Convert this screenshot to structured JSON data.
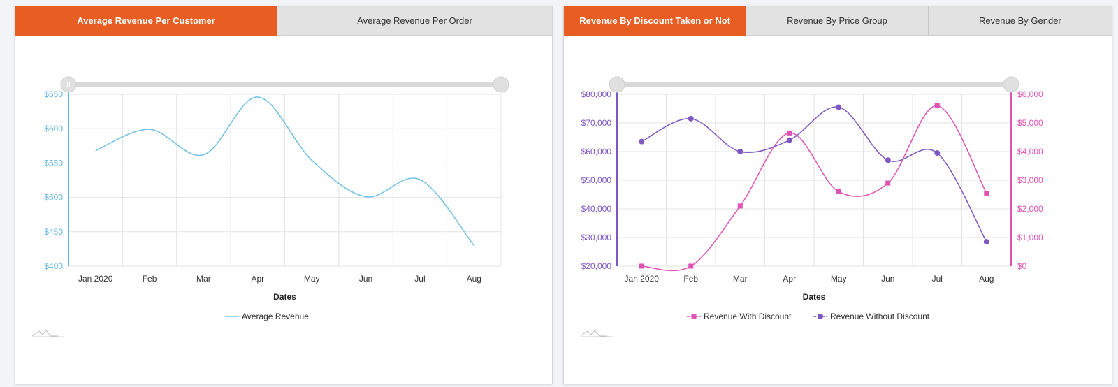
{
  "left_panel": {
    "tabs": [
      {
        "label": "Average Revenue Per Customer",
        "active": true
      },
      {
        "label": "Average Revenue Per Order",
        "active": false
      }
    ]
  },
  "right_panel": {
    "tabs": [
      {
        "label": "Revenue By Discount Taken or Not",
        "active": true
      },
      {
        "label": "Revenue By Price Group",
        "active": false
      },
      {
        "label": "Revenue By Gender",
        "active": false
      }
    ]
  },
  "colors": {
    "accent": "#e85d22",
    "tab_inactive": "#e2e2e2",
    "line_blue": "#6ec0e6",
    "axis_blue": "#5fb6e0",
    "purple": "#7e57c2",
    "magenta": "#e052b4"
  },
  "chart_data": [
    {
      "type": "line",
      "title": "Average Revenue Per Customer",
      "categories": [
        "Jan 2020",
        "Feb",
        "Mar",
        "Apr",
        "May",
        "Jun",
        "Jul",
        "Aug"
      ],
      "series": [
        {
          "name": "Average Revenue",
          "values": [
            568,
            599,
            562,
            646,
            554,
            501,
            526,
            430
          ]
        }
      ],
      "xlabel": "Dates",
      "ylabel": "",
      "ylim": [
        400,
        650
      ],
      "yticks": [
        "$400",
        "$450",
        "$500",
        "$550",
        "$600",
        "$650"
      ],
      "grid": true,
      "legend": "bottom-center"
    },
    {
      "type": "line",
      "title": "Revenue By Discount Taken or Not",
      "categories": [
        "Jan 2020",
        "Feb",
        "Mar",
        "Apr",
        "May",
        "Jun",
        "Jul",
        "Aug"
      ],
      "series": [
        {
          "name": "Revenue With Discount",
          "axis": "right",
          "marker": "square",
          "values": [
            0,
            0,
            2100,
            4650,
            2600,
            2900,
            5600,
            2550
          ]
        },
        {
          "name": "Revenue Without Discount",
          "axis": "left",
          "marker": "circle",
          "values": [
            63500,
            71500,
            60000,
            64000,
            75500,
            57000,
            59500,
            28500
          ]
        }
      ],
      "xlabel": "Dates",
      "ylim_left": [
        20000,
        80000
      ],
      "yticks_left": [
        "$20,000",
        "$30,000",
        "$40,000",
        "$50,000",
        "$60,000",
        "$70,000",
        "$80,000"
      ],
      "ylim_right": [
        0,
        6000
      ],
      "yticks_right": [
        "$0",
        "$1,000",
        "$2,000",
        "$3,000",
        "$4,000",
        "$5,000",
        "$6,000"
      ],
      "grid": true,
      "legend": "bottom-center"
    }
  ]
}
